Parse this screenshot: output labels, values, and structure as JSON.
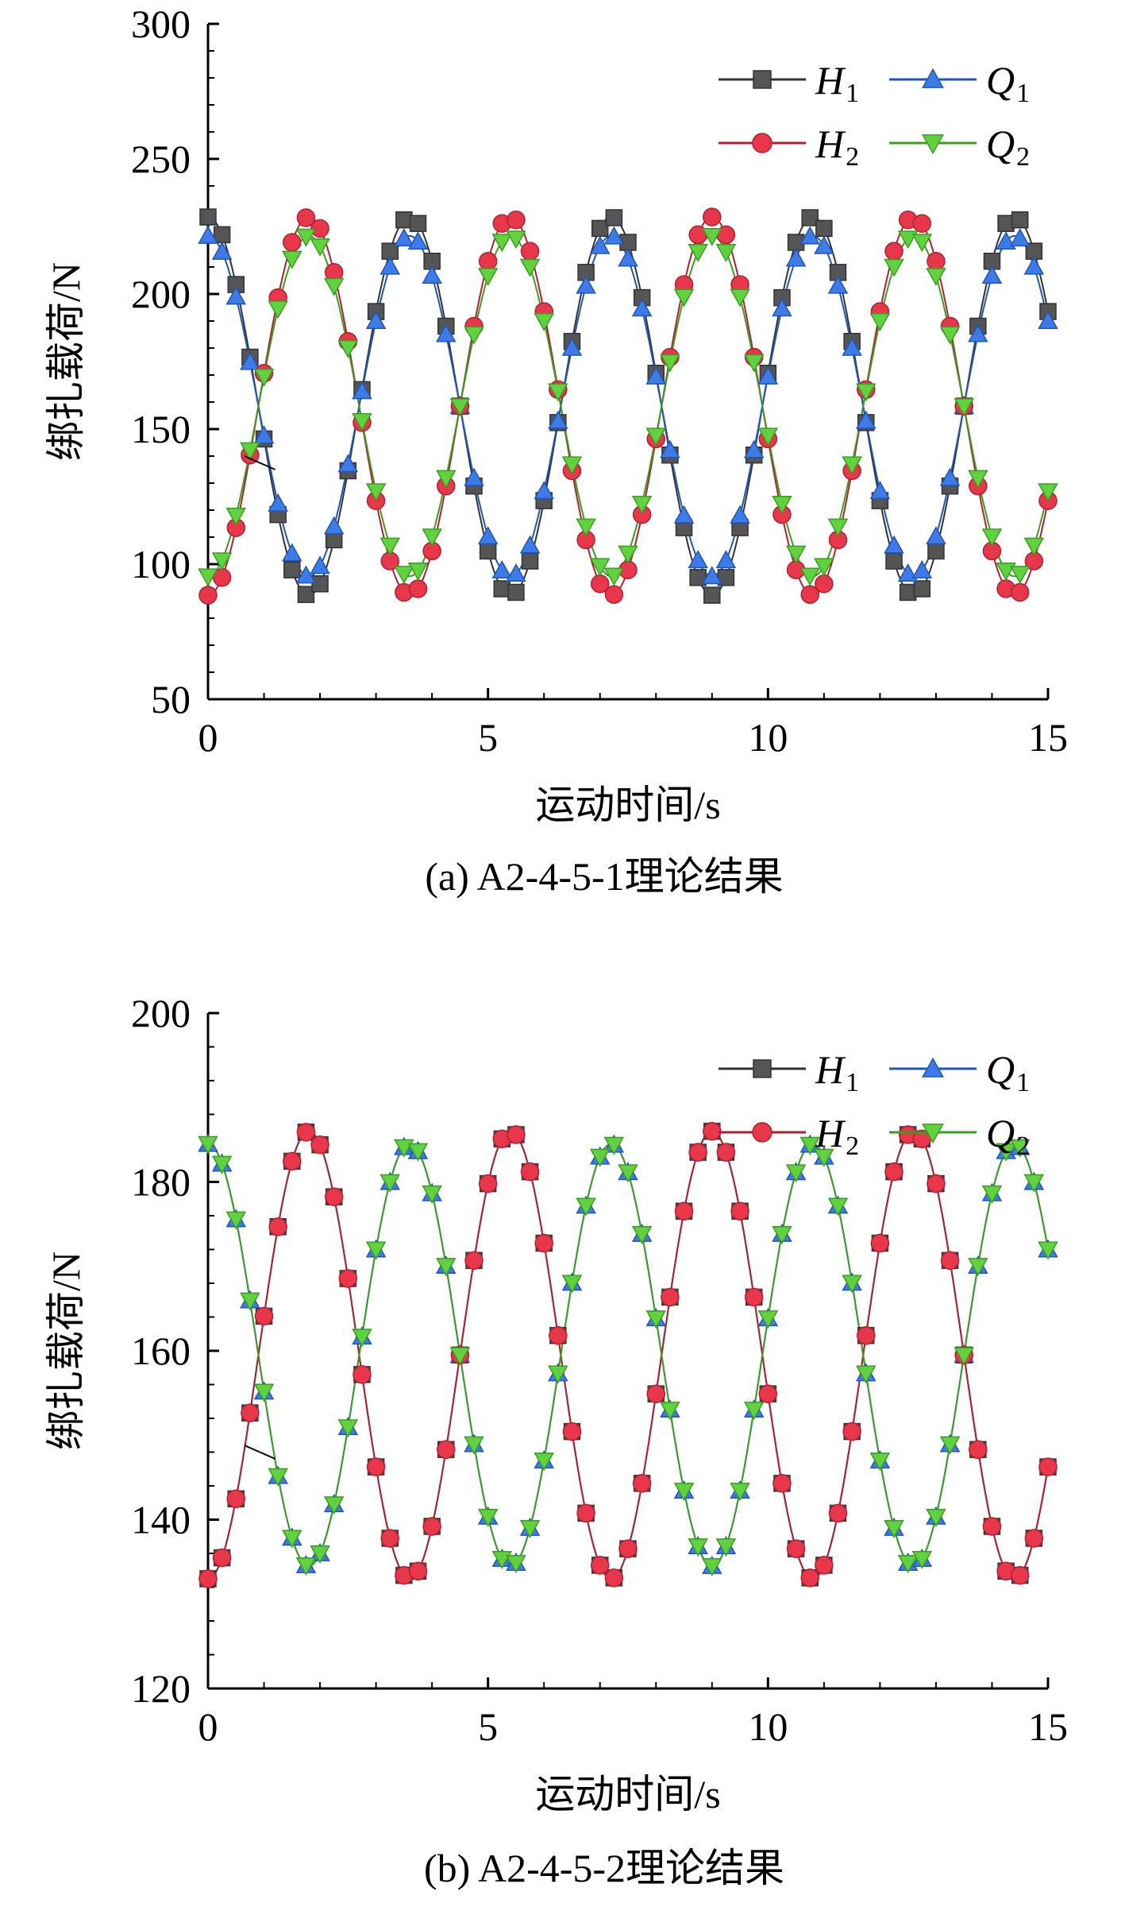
{
  "chart_data": [
    {
      "type": "line",
      "caption": "(a) A2-4-5-1理论结果",
      "xlabel": "运动时间/s",
      "ylabel": "绑扎载荷/N",
      "xlim": [
        0,
        15
      ],
      "ylim": [
        50,
        300
      ],
      "xticks": [
        0,
        5,
        10,
        15
      ],
      "yticks": [
        50,
        100,
        150,
        200,
        250,
        300
      ],
      "x_tick_labels": [
        "0",
        "5",
        "10",
        "15"
      ],
      "y_tick_labels": [
        "50",
        "100",
        "150",
        "200",
        "250",
        "300"
      ],
      "period": 3.6,
      "legend": {
        "placement": "top-right",
        "columns": 2
      },
      "series": [
        {
          "name": "H",
          "sub": "1",
          "color": "#555555",
          "edge": "#333333",
          "marker": "square",
          "mean": 158.5,
          "amplitude": 70,
          "phase_deg": 90
        },
        {
          "name": "H",
          "sub": "2",
          "color": "#e8374a",
          "edge": "#b02030",
          "marker": "circle",
          "mean": 158.5,
          "amplitude": 70,
          "phase_deg": -90
        },
        {
          "name": "Q",
          "sub": "1",
          "color": "#3d7ce8",
          "edge": "#1f55b8",
          "marker": "triangle-up",
          "mean": 158.5,
          "amplitude": 63,
          "phase_deg": 90
        },
        {
          "name": "Q",
          "sub": "2",
          "color": "#5fd23e",
          "edge": "#3a9e22",
          "marker": "triangle-down",
          "mean": 158.5,
          "amplitude": 63,
          "phase_deg": -90
        }
      ]
    },
    {
      "type": "line",
      "caption": "(b) A2-4-5-2理论结果",
      "xlabel": "运动时间/s",
      "ylabel": "绑扎载荷/N",
      "xlim": [
        0,
        15
      ],
      "ylim": [
        120,
        200
      ],
      "xticks": [
        0,
        5,
        10,
        15
      ],
      "yticks": [
        120,
        140,
        160,
        180,
        200
      ],
      "x_tick_labels": [
        "0",
        "5",
        "10",
        "15"
      ],
      "y_tick_labels": [
        "120",
        "140",
        "160",
        "180",
        "200"
      ],
      "period": 3.6,
      "legend": {
        "placement": "top-right",
        "columns": 2
      },
      "series": [
        {
          "name": "H",
          "sub": "1",
          "color": "#555555",
          "edge": "#333333",
          "marker": "square",
          "mean": 159.5,
          "amplitude": 26.5,
          "phase_deg": -90
        },
        {
          "name": "H",
          "sub": "2",
          "color": "#e8374a",
          "edge": "#b02030",
          "marker": "circle",
          "mean": 159.5,
          "amplitude": 26.5,
          "phase_deg": -90
        },
        {
          "name": "Q",
          "sub": "1",
          "color": "#3d7ce8",
          "edge": "#1f55b8",
          "marker": "triangle-up",
          "mean": 159.5,
          "amplitude": 25,
          "phase_deg": 90
        },
        {
          "name": "Q",
          "sub": "2",
          "color": "#5fd23e",
          "edge": "#3a9e22",
          "marker": "triangle-down",
          "mean": 159.5,
          "amplitude": 25,
          "phase_deg": 90
        }
      ]
    }
  ]
}
